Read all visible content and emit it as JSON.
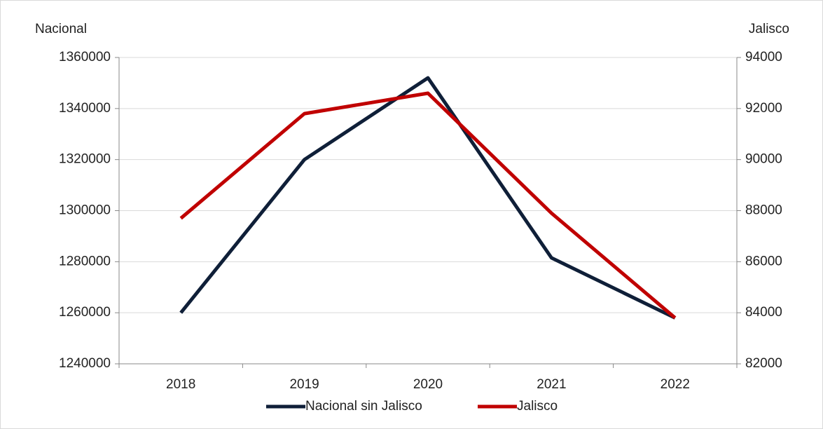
{
  "chart_data": {
    "type": "line",
    "y_label": "Nacional",
    "y2_label": "Jalisco",
    "categories": [
      "2018",
      "2019",
      "2020",
      "2021",
      "2022"
    ],
    "series": [
      {
        "name": "Nacional sin Jalisco",
        "color": "#0f1f38",
        "values": [
          1260000,
          1320000,
          1352000,
          1281500,
          1258000
        ]
      },
      {
        "name": "Jalisco",
        "color": "#c00000",
        "axis": "y2",
        "values": [
          87700,
          91800,
          92600,
          87900,
          83800
        ]
      }
    ],
    "ylim": [
      1240000,
      1360000
    ],
    "yticks": [
      1240000,
      1260000,
      1280000,
      1300000,
      1320000,
      1340000,
      1360000
    ],
    "y2lim": [
      82000,
      94000
    ],
    "y2ticks": [
      82000,
      84000,
      86000,
      88000,
      90000,
      92000,
      94000
    ],
    "grid": true,
    "legend": "bottom"
  }
}
